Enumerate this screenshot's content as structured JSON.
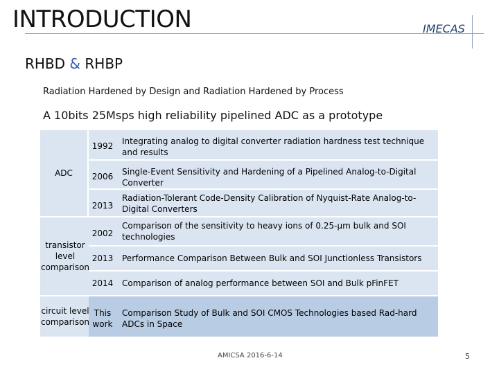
{
  "header": {
    "title": "INTRODUCTION",
    "brand": "IMECAS"
  },
  "subtitle": {
    "part1": "RHBD",
    "amp": "&",
    "part2": "RHBP"
  },
  "description": "Radiation Hardened by Design and Radiation Hardened by Process",
  "prototype": "A 10bits 25Msps high reliability pipelined ADC as a prototype",
  "table": {
    "categories": [
      {
        "label": "ADC"
      },
      {
        "label": "transistor level comparison"
      },
      {
        "label": "circuit level comparison"
      }
    ],
    "rows": [
      {
        "year": "1992",
        "text": "Integrating analog to digital converter radiation hardness test technique and results"
      },
      {
        "year": "2006",
        "text": "Single-Event Sensitivity and Hardening of a Pipelined Analog-to-Digital Converter"
      },
      {
        "year": "2013",
        "text": "Radiation-Tolerant Code-Density Calibration of Nyquist-Rate Analog-to-Digital Converters"
      },
      {
        "year": "2002",
        "text": "Comparison of the sensitivity to heavy ions of 0.25-µm bulk and SOI technologies"
      },
      {
        "year": "2013",
        "text": "Performance Comparison Between Bulk and SOI Junctionless Transistors"
      },
      {
        "year": "2014",
        "text": "Comparison of analog performance between SOI and Bulk pFinFET"
      },
      {
        "year": "This work",
        "text": "Comparison Study of Bulk and SOI CMOS Technologies based Rad-hard ADCs in Space"
      }
    ]
  },
  "footer": {
    "center": "AMICSA 2016-6-14",
    "page": "5"
  }
}
